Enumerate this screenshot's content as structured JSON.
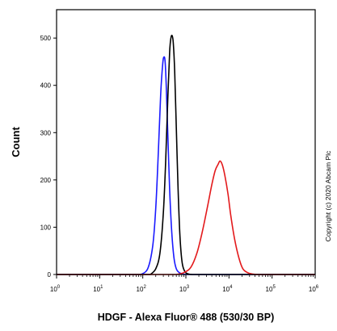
{
  "chart_data": {
    "type": "line",
    "title": "",
    "xlabel": "HDGF - Alexa Fluor® 488 (530/30 BP)",
    "ylabel": "Count",
    "x_scale": "log",
    "xlim": [
      1,
      1000000
    ],
    "ylim": [
      0,
      560
    ],
    "x_ticks": [
      {
        "value": 1,
        "base": "10",
        "exp": "0"
      },
      {
        "value": 10,
        "base": "10",
        "exp": "1"
      },
      {
        "value": 100,
        "base": "10",
        "exp": "2"
      },
      {
        "value": 1000,
        "base": "10",
        "exp": "3"
      },
      {
        "value": 10000,
        "base": "10",
        "exp": "4"
      },
      {
        "value": 100000,
        "base": "10",
        "exp": "5"
      },
      {
        "value": 1000000,
        "base": "10",
        "exp": "6"
      }
    ],
    "y_ticks": [
      0,
      100,
      200,
      300,
      400,
      500
    ],
    "grid": false,
    "legend": "none",
    "series": [
      {
        "color": "#1a1aff",
        "x": [
          90,
          130,
          170,
          200,
          230,
          260,
          290,
          310,
          330,
          350,
          380,
          420,
          470,
          530,
          600,
          700,
          850,
          1000
        ],
        "y": [
          0,
          12,
          60,
          140,
          260,
          380,
          445,
          460,
          450,
          400,
          300,
          180,
          90,
          35,
          12,
          4,
          1,
          0
        ]
      },
      {
        "color": "#000000",
        "x": [
          150,
          200,
          250,
          300,
          340,
          380,
          420,
          450,
          480,
          510,
          550,
          600,
          660,
          730,
          820,
          950,
          1150,
          1400
        ],
        "y": [
          0,
          12,
          45,
          130,
          240,
          370,
          470,
          500,
          505,
          490,
          430,
          310,
          180,
          80,
          25,
          6,
          1,
          0
        ]
      },
      {
        "color": "#e31a1c",
        "x": [
          600,
          900,
          1300,
          1800,
          2400,
          3200,
          4000,
          4800,
          5600,
          6200,
          7000,
          8000,
          9500,
          11000,
          13500,
          17000,
          21000,
          27000,
          35000,
          45000
        ],
        "y": [
          0,
          4,
          15,
          45,
          90,
          145,
          190,
          220,
          233,
          240,
          232,
          210,
          170,
          125,
          75,
          35,
          12,
          4,
          1,
          0
        ]
      }
    ],
    "annotations": [
      "Copyright (c) 2020 Abcam Plc"
    ]
  }
}
